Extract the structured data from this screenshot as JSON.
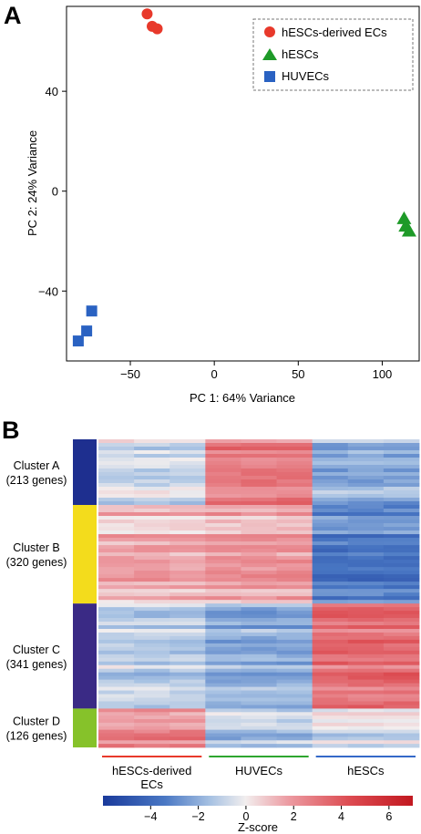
{
  "panels": {
    "a_label": "A",
    "b_label": "B"
  },
  "chart_data": [
    {
      "type": "scatter",
      "xlabel": "PC 1: 64% Variance",
      "ylabel": "PC 2: 24% Variance",
      "xlim": [
        -88,
        122
      ],
      "ylim": [
        -68,
        74
      ],
      "xticks": [
        -50,
        0,
        50,
        100
      ],
      "xtick_labels": [
        "−50",
        "0",
        "50",
        "100"
      ],
      "yticks": [
        -40,
        0,
        40
      ],
      "ytick_labels": [
        "−40",
        "0",
        "40"
      ],
      "grid": false,
      "legend_position": "top-right",
      "series": [
        {
          "name": "hESCs-derived ECs",
          "marker": "circle",
          "color": "#e8392b",
          "points": [
            [
              -40,
              71
            ],
            [
              -37,
              66
            ],
            [
              -34,
              65
            ]
          ]
        },
        {
          "name": "hESCs",
          "marker": "triangle",
          "color": "#1e9a28",
          "points": [
            [
              113,
              -11
            ],
            [
              114,
              -14
            ],
            [
              116,
              -16
            ]
          ]
        },
        {
          "name": "HUVECs",
          "marker": "square",
          "color": "#2a62c2",
          "points": [
            [
              -73,
              -48
            ],
            [
              -76,
              -56
            ],
            [
              -81,
              -60
            ]
          ]
        }
      ]
    },
    {
      "type": "heatmap",
      "colorbar_label": "Z-score",
      "colorbar_ticks": [
        -4,
        -2,
        0,
        2,
        4,
        6
      ],
      "colorbar_tick_labels": [
        "−4",
        "−2",
        "0",
        "2",
        "4",
        "6"
      ],
      "colorbar_range": [
        -6,
        7
      ],
      "colors": {
        "low": "#1a3a9b",
        "mid": "#f2eeee",
        "high": "#d01f26"
      },
      "columns": [
        {
          "label_line1": "hESCs-derived",
          "label_line2": "ECs",
          "bar_color": "#e8392b",
          "replicates": 3
        },
        {
          "label_line1": "HUVECs",
          "label_line2": "",
          "bar_color": "#2ea62f",
          "replicates": 3
        },
        {
          "label_line1": "hESCs",
          "label_line2": "",
          "bar_color": "#3469c8",
          "replicates": 3
        }
      ],
      "clusters": [
        {
          "label_line1": "Cluster A",
          "label_line2": "(213 genes)",
          "genes": 213,
          "color": "#1e2f8f",
          "mean_z": [
            -0.6,
            2.8,
            -2.0
          ]
        },
        {
          "label_line1": "Cluster B",
          "label_line2": "(320 genes)",
          "genes": 320,
          "color": "#f3dc1c",
          "mean_z": [
            1.4,
            1.8,
            -3.3
          ]
        },
        {
          "label_line1": "Cluster C",
          "label_line2": "(341 genes)",
          "genes": 341,
          "color": "#3a2a85",
          "mean_z": [
            -1.0,
            -2.0,
            3.3
          ]
        },
        {
          "label_line1": "Cluster D",
          "label_line2": "(126 genes)",
          "genes": 126,
          "color": "#86c22a",
          "mean_z": [
            2.6,
            -1.3,
            -0.5
          ]
        }
      ]
    }
  ]
}
